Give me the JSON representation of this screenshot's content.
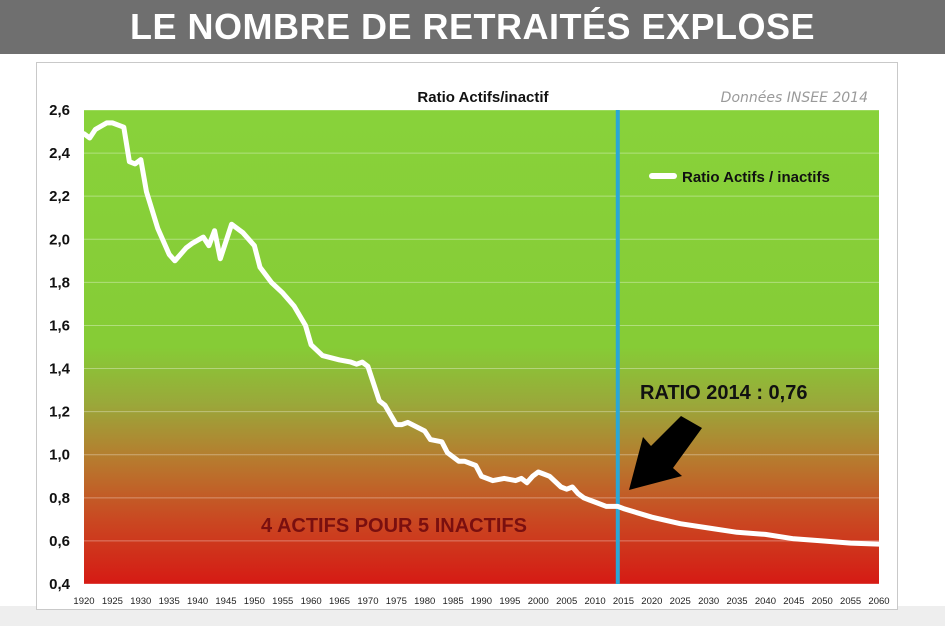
{
  "banner": {
    "title": "LE NOMBRE DE RETRAITÉS EXPLOSE"
  },
  "chart_data": {
    "type": "line",
    "title": "Ratio Actifs/inactif",
    "source_note": "Données INSEE 2014",
    "xlabel": "",
    "ylabel": "",
    "ylim": [
      0.4,
      2.6
    ],
    "xlim": [
      1920,
      2060
    ],
    "y_ticks": [
      "2,6",
      "2,4",
      "2,2",
      "2,0",
      "1,8",
      "1,6",
      "1,4",
      "1,2",
      "1,0",
      "0,8",
      "0,6",
      "0,4"
    ],
    "x_ticks": [
      "1920",
      "1925",
      "1930",
      "1935",
      "1940",
      "1945",
      "1950",
      "1955",
      "1960",
      "1965",
      "1970",
      "1975",
      "1980",
      "1985",
      "1990",
      "1995",
      "2000",
      "2005",
      "2010",
      "2015",
      "2020",
      "2025",
      "2030",
      "2035",
      "2040",
      "2045",
      "2050",
      "2055",
      "2060"
    ],
    "grid": true,
    "legend_position": "top-right",
    "background": "gradient green (top) to red (bottom)",
    "series": [
      {
        "name": "Ratio Actifs / inactifs",
        "color": "#ffffff",
        "x": [
          1920,
          1921,
          1922,
          1924,
          1925,
          1927,
          1928,
          1929,
          1930,
          1931,
          1933,
          1935,
          1936,
          1938,
          1939,
          1941,
          1942,
          1943,
          1944,
          1946,
          1948,
          1950,
          1951,
          1953,
          1955,
          1957,
          1959,
          1960,
          1962,
          1965,
          1967,
          1968,
          1969,
          1970,
          1972,
          1973,
          1975,
          1976,
          1977,
          1980,
          1981,
          1983,
          1984,
          1986,
          1987,
          1989,
          1990,
          1992,
          1994,
          1996,
          1997,
          1998,
          1999,
          2000,
          2001,
          2002,
          2004,
          2005,
          2006,
          2007,
          2008,
          2009,
          2010,
          2012,
          2014,
          2015,
          2020,
          2025,
          2030,
          2035,
          2040,
          2045,
          2050,
          2055,
          2060
        ],
        "values": [
          2.49,
          2.47,
          2.51,
          2.54,
          2.54,
          2.52,
          2.36,
          2.35,
          2.37,
          2.22,
          2.05,
          1.93,
          1.9,
          1.96,
          1.98,
          2.01,
          1.97,
          2.04,
          1.91,
          2.07,
          2.03,
          1.97,
          1.87,
          1.8,
          1.75,
          1.69,
          1.6,
          1.51,
          1.46,
          1.44,
          1.43,
          1.42,
          1.43,
          1.41,
          1.25,
          1.23,
          1.14,
          1.14,
          1.15,
          1.11,
          1.07,
          1.06,
          1.01,
          0.97,
          0.97,
          0.95,
          0.9,
          0.88,
          0.89,
          0.88,
          0.89,
          0.87,
          0.9,
          0.92,
          0.91,
          0.9,
          0.85,
          0.84,
          0.85,
          0.82,
          0.8,
          0.79,
          0.78,
          0.76,
          0.76,
          0.75,
          0.71,
          0.68,
          0.66,
          0.64,
          0.63,
          0.61,
          0.6,
          0.59,
          0.585
        ]
      }
    ],
    "marker_line": {
      "x": 2014,
      "color": "#2aa7d6"
    },
    "annotations": [
      {
        "text": "RATIO 2014 : 0,76"
      },
      {
        "text": "4 ACTIFS POUR 5 INACTIFS"
      }
    ]
  }
}
